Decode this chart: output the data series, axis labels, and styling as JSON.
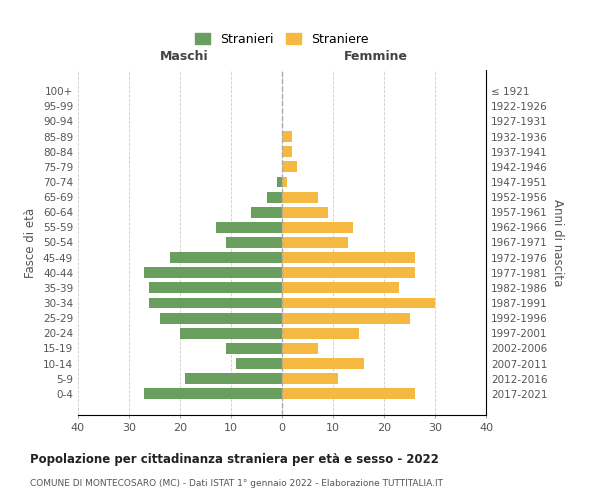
{
  "age_groups": [
    "100+",
    "95-99",
    "90-94",
    "85-89",
    "80-84",
    "75-79",
    "70-74",
    "65-69",
    "60-64",
    "55-59",
    "50-54",
    "45-49",
    "40-44",
    "35-39",
    "30-34",
    "25-29",
    "20-24",
    "15-19",
    "10-14",
    "5-9",
    "0-4"
  ],
  "birth_years": [
    "≤ 1921",
    "1922-1926",
    "1927-1931",
    "1932-1936",
    "1937-1941",
    "1942-1946",
    "1947-1951",
    "1952-1956",
    "1957-1961",
    "1962-1966",
    "1967-1971",
    "1972-1976",
    "1977-1981",
    "1982-1986",
    "1987-1991",
    "1992-1996",
    "1997-2001",
    "2002-2006",
    "2007-2011",
    "2012-2016",
    "2017-2021"
  ],
  "maschi": [
    0,
    0,
    0,
    0,
    0,
    0,
    1,
    3,
    6,
    13,
    11,
    22,
    27,
    26,
    26,
    24,
    20,
    11,
    9,
    19,
    27
  ],
  "femmine": [
    0,
    0,
    0,
    2,
    2,
    3,
    1,
    7,
    9,
    14,
    13,
    26,
    26,
    23,
    30,
    25,
    15,
    7,
    16,
    11,
    26
  ],
  "male_color": "#6a9e5e",
  "female_color": "#f5b942",
  "title": "Popolazione per cittadinanza straniera per età e sesso - 2022",
  "subtitle": "COMUNE DI MONTECOSARO (MC) - Dati ISTAT 1° gennaio 2022 - Elaborazione TUTTITALIA.IT",
  "ylabel_left": "Fasce di età",
  "ylabel_right": "Anni di nascita",
  "xlabel_left": "Maschi",
  "xlabel_top_right": "Femmine",
  "legend_stranieri": "Stranieri",
  "legend_straniere": "Straniere",
  "xlim": 40,
  "background_color": "#ffffff",
  "grid_color": "#cccccc"
}
